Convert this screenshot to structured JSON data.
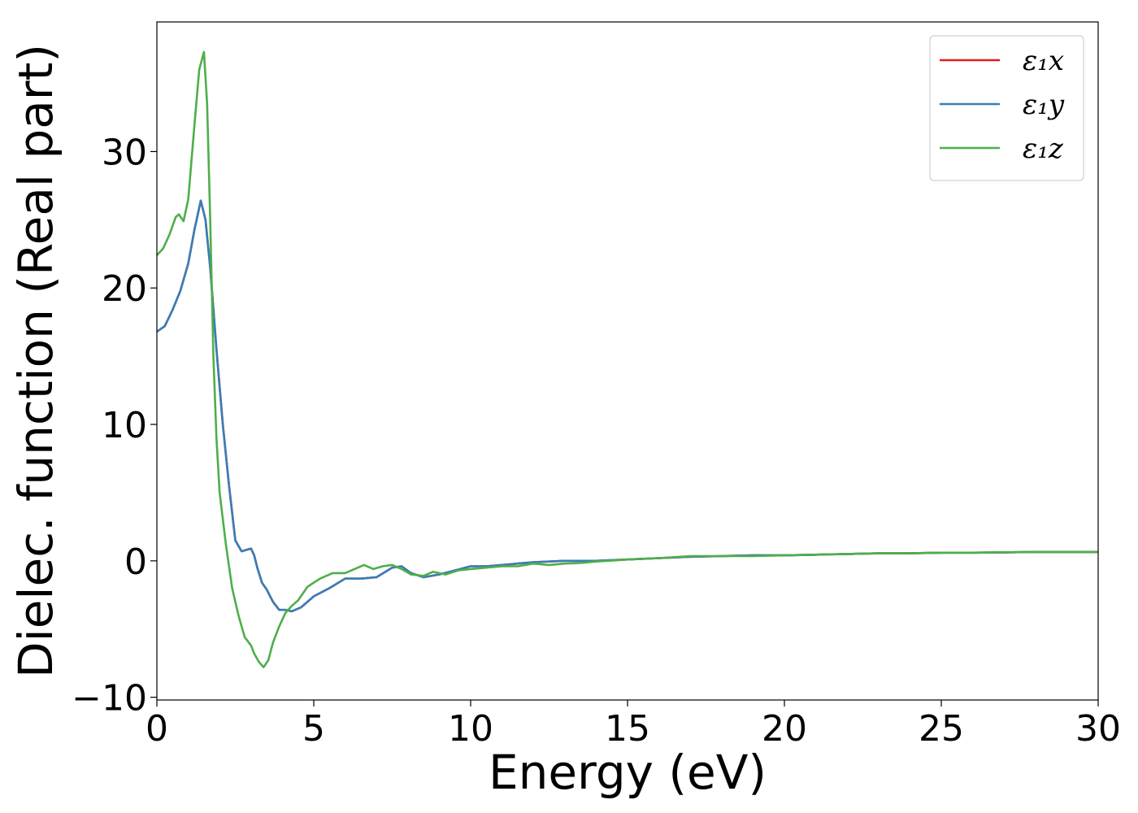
{
  "chart_data": {
    "type": "line",
    "title": "",
    "xlabel": "Energy (eV)",
    "ylabel": "Dielec. function (Real part)",
    "xlim": [
      0,
      30
    ],
    "ylim": [
      -10.2,
      39.5
    ],
    "x_ticks": [
      0,
      5,
      10,
      15,
      20,
      25,
      30
    ],
    "x_tick_labels": [
      "0",
      "5",
      "10",
      "15",
      "20",
      "25",
      "30"
    ],
    "y_ticks": [
      -10,
      0,
      10,
      20,
      30
    ],
    "y_tick_labels": [
      "−10",
      "0",
      "10",
      "20",
      "30"
    ],
    "grid": false,
    "legend_position": "top-right",
    "series": [
      {
        "name": "ε₁x",
        "color": "#e41a1c",
        "x": [
          0,
          0.25,
          0.5,
          0.75,
          1.0,
          1.2,
          1.4,
          1.55,
          1.7,
          1.9,
          2.1,
          2.3,
          2.5,
          2.7,
          2.85,
          3.0,
          3.1,
          3.2,
          3.35,
          3.5,
          3.7,
          3.9,
          4.1,
          4.3,
          4.6,
          5.0,
          5.5,
          6.0,
          6.5,
          7.0,
          7.5,
          7.8,
          8.1,
          8.5,
          9.0,
          9.5,
          10.0,
          10.5,
          11.0,
          12.0,
          13.0,
          14.0,
          15.0,
          16.0,
          17.0,
          18.0,
          19.0,
          20.0,
          21.0,
          22.0,
          23.0,
          24.0,
          25.0,
          26.0,
          27.0,
          28.0,
          29.0,
          30.0
        ],
        "y": [
          16.8,
          17.2,
          18.4,
          19.8,
          21.8,
          24.3,
          26.4,
          25.0,
          21.5,
          15.5,
          10.0,
          5.5,
          1.5,
          0.7,
          0.8,
          0.9,
          0.4,
          -0.5,
          -1.6,
          -2.1,
          -3.0,
          -3.6,
          -3.6,
          -3.7,
          -3.4,
          -2.6,
          -2.0,
          -1.3,
          -1.3,
          -1.2,
          -0.5,
          -0.4,
          -0.9,
          -1.2,
          -1.0,
          -0.7,
          -0.4,
          -0.4,
          -0.3,
          -0.1,
          0.0,
          0.0,
          0.1,
          0.2,
          0.3,
          0.35,
          0.4,
          0.4,
          0.45,
          0.5,
          0.55,
          0.55,
          0.6,
          0.6,
          0.62,
          0.65,
          0.65,
          0.65
        ]
      },
      {
        "name": "ε₁y",
        "color": "#377eb8",
        "x": [
          0,
          0.25,
          0.5,
          0.75,
          1.0,
          1.2,
          1.4,
          1.55,
          1.7,
          1.9,
          2.1,
          2.3,
          2.5,
          2.7,
          2.85,
          3.0,
          3.1,
          3.2,
          3.35,
          3.5,
          3.7,
          3.9,
          4.1,
          4.3,
          4.6,
          5.0,
          5.5,
          6.0,
          6.5,
          7.0,
          7.5,
          7.8,
          8.1,
          8.5,
          9.0,
          9.5,
          10.0,
          10.5,
          11.0,
          12.0,
          13.0,
          14.0,
          15.0,
          16.0,
          17.0,
          18.0,
          19.0,
          20.0,
          21.0,
          22.0,
          23.0,
          24.0,
          25.0,
          26.0,
          27.0,
          28.0,
          29.0,
          30.0
        ],
        "y": [
          16.8,
          17.2,
          18.4,
          19.8,
          21.8,
          24.3,
          26.4,
          25.0,
          21.5,
          15.5,
          10.0,
          5.5,
          1.5,
          0.7,
          0.8,
          0.9,
          0.4,
          -0.5,
          -1.6,
          -2.1,
          -3.0,
          -3.6,
          -3.6,
          -3.7,
          -3.4,
          -2.6,
          -2.0,
          -1.3,
          -1.3,
          -1.2,
          -0.5,
          -0.4,
          -0.9,
          -1.2,
          -1.0,
          -0.7,
          -0.4,
          -0.4,
          -0.3,
          -0.1,
          0.0,
          0.0,
          0.1,
          0.2,
          0.3,
          0.35,
          0.4,
          0.4,
          0.45,
          0.5,
          0.55,
          0.55,
          0.6,
          0.6,
          0.62,
          0.65,
          0.65,
          0.65
        ]
      },
      {
        "name": "ε₁z",
        "color": "#4daf4a",
        "x": [
          0,
          0.2,
          0.4,
          0.6,
          0.7,
          0.85,
          1.0,
          1.2,
          1.35,
          1.5,
          1.6,
          1.7,
          1.8,
          1.9,
          2.0,
          2.2,
          2.4,
          2.6,
          2.8,
          3.0,
          3.1,
          3.25,
          3.4,
          3.55,
          3.7,
          3.9,
          4.1,
          4.3,
          4.5,
          4.8,
          5.2,
          5.6,
          6.0,
          6.3,
          6.6,
          6.9,
          7.2,
          7.5,
          7.8,
          8.1,
          8.5,
          8.8,
          9.2,
          9.6,
          10.0,
          11.0,
          11.5,
          12.0,
          12.5,
          13.0,
          13.5,
          14.0,
          15.0,
          16.0,
          17.0,
          18.0,
          19.0,
          20.0,
          21.0,
          22.0,
          23.0,
          24.0,
          25.0,
          26.0,
          27.0,
          28.0,
          29.0,
          30.0
        ],
        "y": [
          22.4,
          22.9,
          23.9,
          25.2,
          25.4,
          24.9,
          26.5,
          32.0,
          36.0,
          37.3,
          33.5,
          25.0,
          15.0,
          9.0,
          5.0,
          1.2,
          -2.0,
          -4.0,
          -5.6,
          -6.2,
          -6.8,
          -7.4,
          -7.8,
          -7.3,
          -6.0,
          -4.8,
          -3.8,
          -3.3,
          -2.9,
          -1.9,
          -1.3,
          -0.9,
          -0.9,
          -0.6,
          -0.3,
          -0.6,
          -0.4,
          -0.3,
          -0.6,
          -1.0,
          -1.1,
          -0.8,
          -1.0,
          -0.7,
          -0.6,
          -0.4,
          -0.4,
          -0.2,
          -0.3,
          -0.2,
          -0.15,
          -0.05,
          0.1,
          0.2,
          0.35,
          0.35,
          0.35,
          0.4,
          0.45,
          0.5,
          0.55,
          0.55,
          0.6,
          0.6,
          0.62,
          0.65,
          0.65,
          0.65
        ]
      }
    ]
  }
}
